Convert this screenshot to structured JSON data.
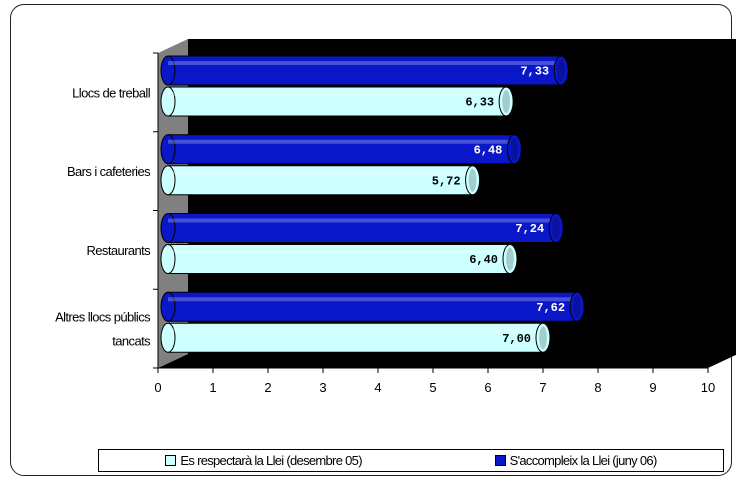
{
  "chart_data": {
    "type": "bar",
    "orientation": "horizontal",
    "three_d": true,
    "categories": [
      "Llocs de treball",
      "Bars i cafeteries",
      "Restaurants",
      "Altres llocs públics tancats"
    ],
    "series": [
      {
        "name": "S'accompleix la Llei (juny 06)",
        "values_label": [
          "7,33",
          "6,48",
          "7,24",
          "7,62"
        ],
        "values": [
          7.33,
          6.48,
          7.24,
          7.62
        ],
        "color": "#0a17c9"
      },
      {
        "name": "Es respectarà la Llei (desembre 05)",
        "values_label": [
          "6,33",
          "5,72",
          "6,40",
          "7,00"
        ],
        "values": [
          6.33,
          5.72,
          6.4,
          7.0
        ],
        "color": "#ccffff"
      }
    ],
    "x_ticks": [
      "0",
      "1",
      "2",
      "3",
      "4",
      "5",
      "6",
      "7",
      "8",
      "9",
      "10"
    ],
    "xlim": [
      0,
      10
    ],
    "plot_background": "#000000",
    "gridlines": false,
    "legend_position": "bottom",
    "legend": [
      {
        "label": "Es respectarà la Llei (desembre 05)",
        "color": "#ccffff"
      },
      {
        "label": "S'accompleix la Llei (juny 06)",
        "color": "#0a17c9"
      }
    ]
  }
}
